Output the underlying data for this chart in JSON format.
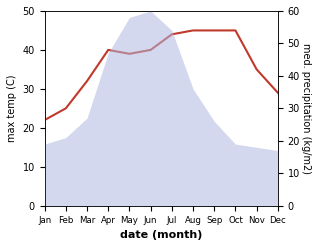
{
  "months": [
    "Jan",
    "Feb",
    "Mar",
    "Apr",
    "May",
    "Jun",
    "Jul",
    "Aug",
    "Sep",
    "Oct",
    "Nov",
    "Dec"
  ],
  "precipitation": [
    19,
    21,
    27,
    47,
    58,
    60,
    54,
    36,
    26,
    19,
    18,
    17
  ],
  "temperature": [
    22,
    25,
    32,
    40,
    39,
    40,
    44,
    45,
    45,
    45,
    35,
    29
  ],
  "precip_color": "#b0b8e0",
  "temp_color": "#c0392b",
  "left_ylabel": "max temp (C)",
  "right_ylabel": "med. precipitation (kg/m2)",
  "xlabel": "date (month)",
  "left_ylim": [
    0,
    50
  ],
  "right_ylim": [
    0,
    60
  ],
  "fill_alpha": 0.55,
  "bg_color": "#ffffff"
}
